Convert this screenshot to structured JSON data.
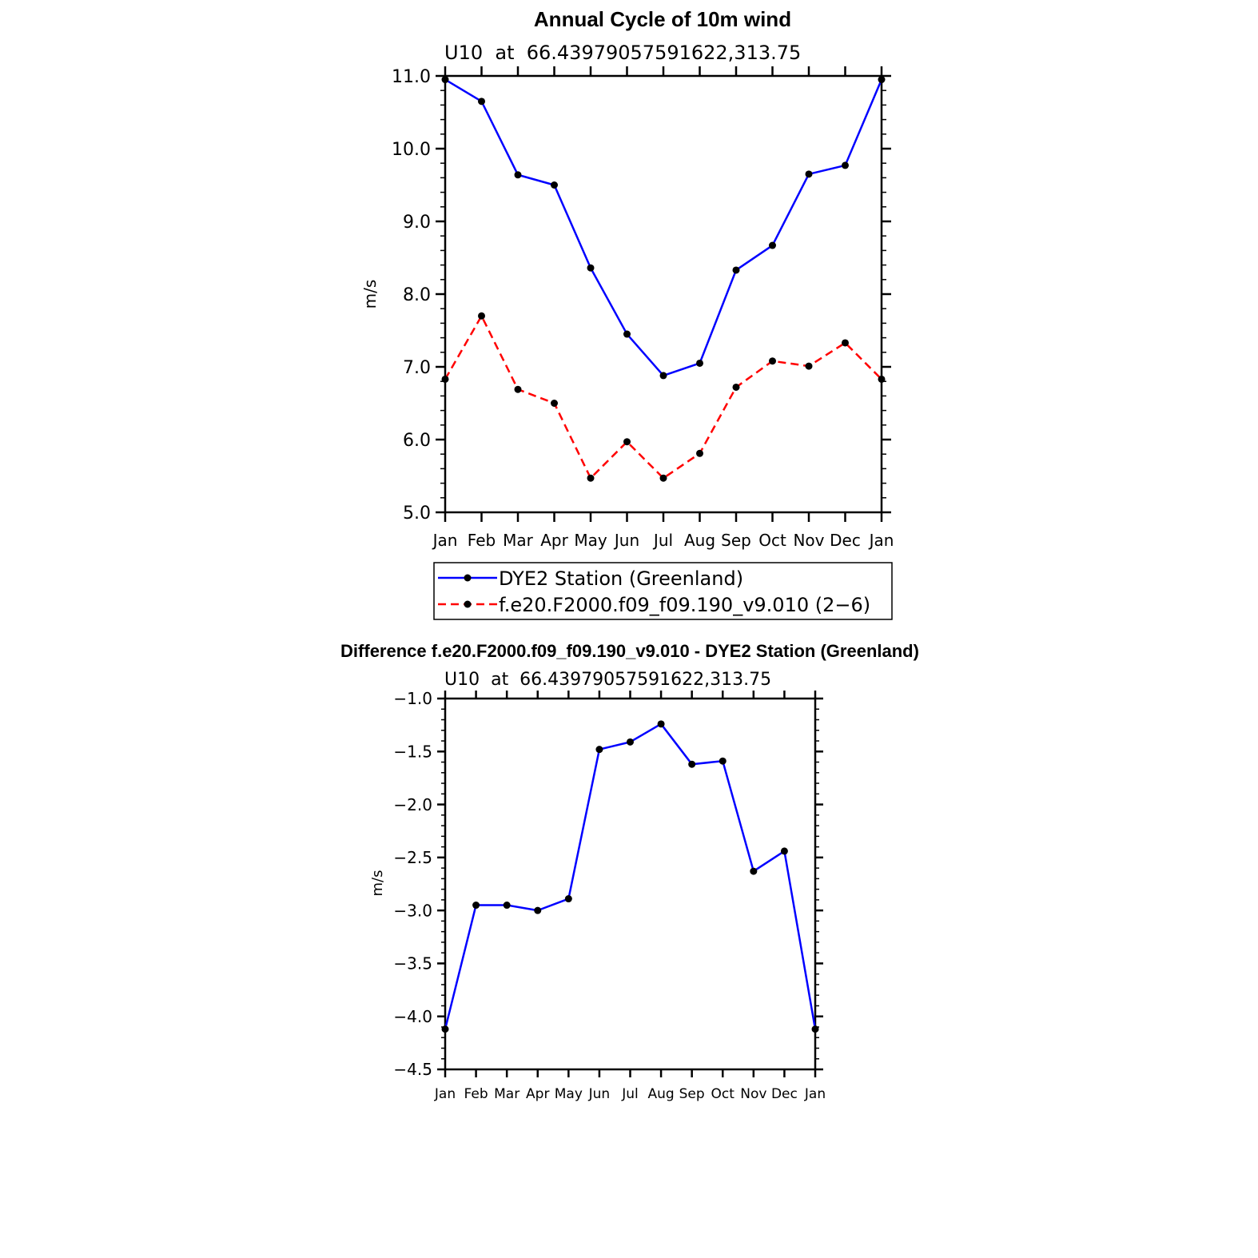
{
  "chart_data": [
    {
      "type": "line",
      "title": "Annual Cycle of 10m wind",
      "subtitle": "U10  at  66.43979057591622,313.75",
      "xlabel": "",
      "ylabel": "m/s",
      "categories": [
        "Jan",
        "Feb",
        "Mar",
        "Apr",
        "May",
        "Jun",
        "Jul",
        "Aug",
        "Sep",
        "Oct",
        "Nov",
        "Dec",
        "Jan"
      ],
      "ylim": [
        5.0,
        11.0
      ],
      "yticks": [
        "5.0",
        "6.0",
        "7.0",
        "8.0",
        "9.0",
        "10.0",
        "11.0"
      ],
      "legend_position": "bottom",
      "series": [
        {
          "name": "DYE2 Station (Greenland)",
          "color": "#0000ff",
          "dash": "solid",
          "values": [
            10.95,
            10.65,
            9.64,
            9.5,
            8.36,
            7.45,
            6.88,
            7.05,
            8.33,
            8.67,
            9.65,
            9.77,
            10.95
          ]
        },
        {
          "name": "f.e20.F2000.f09_f09.190_v9.010 (2−6)",
          "color": "#ff0000",
          "dash": "dashed",
          "values": [
            6.83,
            7.7,
            6.69,
            6.5,
            5.47,
            5.97,
            5.47,
            5.81,
            6.72,
            7.08,
            7.01,
            7.33,
            6.83
          ]
        }
      ]
    },
    {
      "type": "line",
      "title": "Difference f.e20.F2000.f09_f09.190_v9.010 - DYE2 Station (Greenland)",
      "subtitle": "U10  at  66.43979057591622,313.75",
      "xlabel": "",
      "ylabel": "m/s",
      "categories": [
        "Jan",
        "Feb",
        "Mar",
        "Apr",
        "May",
        "Jun",
        "Jul",
        "Aug",
        "Sep",
        "Oct",
        "Nov",
        "Dec",
        "Jan"
      ],
      "ylim": [
        -4.5,
        -1.0
      ],
      "yticks": [
        "−4.5",
        "−4.0",
        "−3.5",
        "−3.0",
        "−2.5",
        "−2.0",
        "−1.5",
        "−1.0"
      ],
      "series": [
        {
          "color": "#0000ff",
          "dash": "solid",
          "values": [
            -4.12,
            -2.95,
            -2.95,
            -3.0,
            -2.89,
            -1.48,
            -1.41,
            -1.24,
            -1.62,
            -1.59,
            -2.63,
            -2.44,
            -4.12
          ]
        }
      ]
    }
  ]
}
